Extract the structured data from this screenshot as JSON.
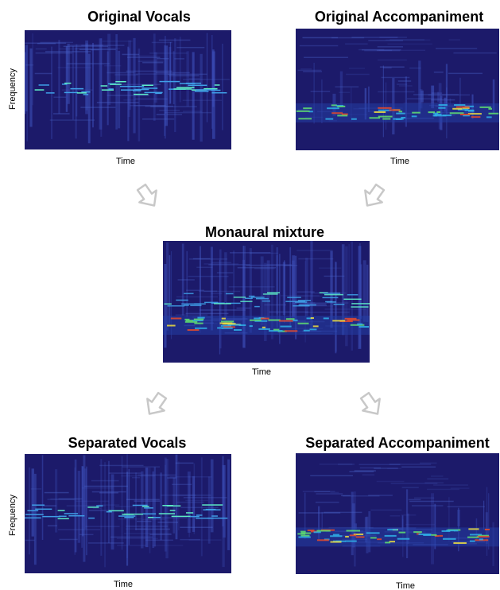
{
  "panels": [
    {
      "title": "Original Vocals",
      "x_label": "Time",
      "y_label": "Frequency"
    },
    {
      "title": "Original Accompaniment",
      "x_label": "Time"
    },
    {
      "title": "Monaural mixture",
      "x_label": "Time"
    },
    {
      "title": "Separated Vocals",
      "x_label": "Time",
      "y_label": "Frequency"
    },
    {
      "title": "Separated Accompaniment",
      "x_label": "Time"
    }
  ]
}
